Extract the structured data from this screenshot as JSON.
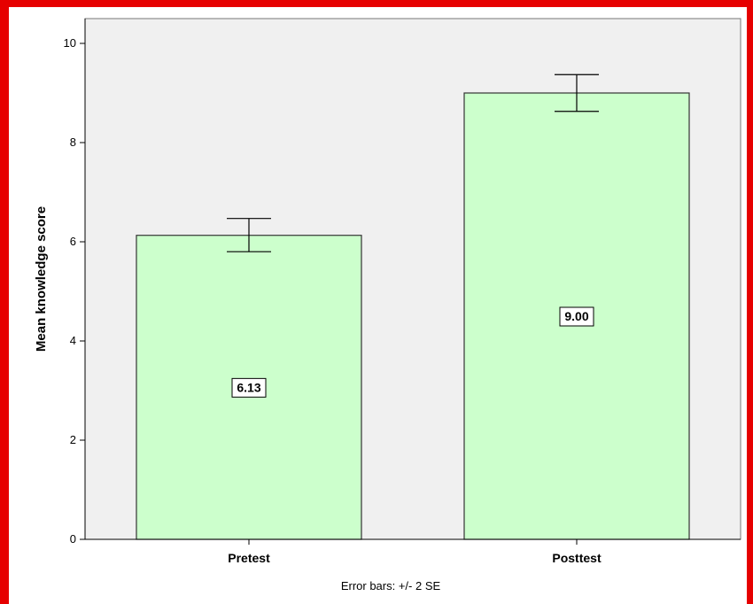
{
  "chart_data": {
    "type": "bar",
    "categories": [
      "Pretest",
      "Posttest"
    ],
    "values": [
      6.13,
      9.0
    ],
    "value_labels": [
      "6.13",
      "9.00"
    ],
    "error_bars": [
      {
        "low": 5.8,
        "high": 6.47
      },
      {
        "low": 8.63,
        "high": 9.37
      }
    ],
    "ylabel": "Mean knowledge score",
    "xlabel": "",
    "footnote": "Error bars: +/- 2 SE",
    "ylim": [
      0,
      10.5
    ],
    "yticks": [
      0,
      2,
      4,
      6,
      8,
      10
    ],
    "grid": false,
    "colors": {
      "bar_fill": "#ccffcc",
      "bar_stroke": "#333333",
      "plot_background": "#f0f0f0",
      "frame": "#e60000"
    }
  }
}
